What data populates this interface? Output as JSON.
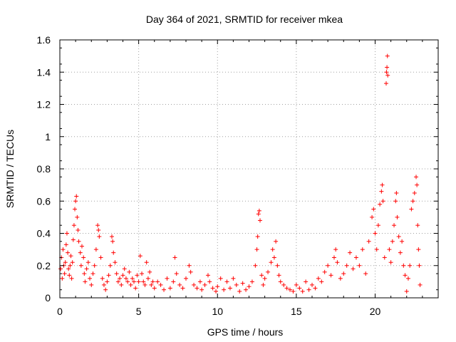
{
  "chart_data": {
    "type": "scatter",
    "title": "Day 364 of 2021, SRMTID for receiver mkea",
    "xlabel": "GPS time / hours",
    "ylabel": "SRMTID / TECUs",
    "xlim": [
      0,
      24
    ],
    "ylim": [
      0,
      1.6
    ],
    "x_ticks": [
      0,
      5,
      10,
      15,
      20
    ],
    "x_tick_labels": [
      "0",
      "5",
      "10",
      "15",
      "20"
    ],
    "y_ticks": [
      0,
      0.2,
      0.4,
      0.6,
      0.8,
      1.0,
      1.2,
      1.4,
      1.6
    ],
    "y_tick_labels": [
      "0",
      "0.2",
      "0.4",
      "0.6",
      "0.8",
      "1",
      "1.2",
      "1.4",
      "1.6"
    ],
    "grid": true,
    "marker": "+",
    "color": "#ff0000",
    "series": [
      {
        "name": "SRMTID",
        "points": [
          [
            0.05,
            0.18
          ],
          [
            0.1,
            0.25
          ],
          [
            0.15,
            0.12
          ],
          [
            0.2,
            0.3
          ],
          [
            0.25,
            0.2
          ],
          [
            0.3,
            0.15
          ],
          [
            0.35,
            0.22
          ],
          [
            0.4,
            0.33
          ],
          [
            0.45,
            0.4
          ],
          [
            0.5,
            0.28
          ],
          [
            0.55,
            0.18
          ],
          [
            0.6,
            0.14
          ],
          [
            0.65,
            0.2
          ],
          [
            0.7,
            0.26
          ],
          [
            0.75,
            0.12
          ],
          [
            0.8,
            0.22
          ],
          [
            0.85,
            0.36
          ],
          [
            0.9,
            0.45
          ],
          [
            0.95,
            0.55
          ],
          [
            1.0,
            0.6
          ],
          [
            1.05,
            0.63
          ],
          [
            1.1,
            0.5
          ],
          [
            1.15,
            0.42
          ],
          [
            1.2,
            0.35
          ],
          [
            1.3,
            0.28
          ],
          [
            1.35,
            0.2
          ],
          [
            1.4,
            0.32
          ],
          [
            1.5,
            0.25
          ],
          [
            1.55,
            0.15
          ],
          [
            1.6,
            0.1
          ],
          [
            1.7,
            0.18
          ],
          [
            1.8,
            0.22
          ],
          [
            1.9,
            0.12
          ],
          [
            2.0,
            0.08
          ],
          [
            2.1,
            0.15
          ],
          [
            2.2,
            0.2
          ],
          [
            2.3,
            0.3
          ],
          [
            2.4,
            0.45
          ],
          [
            2.45,
            0.42
          ],
          [
            2.5,
            0.38
          ],
          [
            2.6,
            0.25
          ],
          [
            2.7,
            0.12
          ],
          [
            2.8,
            0.08
          ],
          [
            2.9,
            0.05
          ],
          [
            3.0,
            0.1
          ],
          [
            3.1,
            0.14
          ],
          [
            3.2,
            0.2
          ],
          [
            3.3,
            0.38
          ],
          [
            3.35,
            0.35
          ],
          [
            3.4,
            0.28
          ],
          [
            3.5,
            0.22
          ],
          [
            3.6,
            0.15
          ],
          [
            3.7,
            0.1
          ],
          [
            3.8,
            0.12
          ],
          [
            3.9,
            0.08
          ],
          [
            4.0,
            0.14
          ],
          [
            4.1,
            0.18
          ],
          [
            4.2,
            0.12
          ],
          [
            4.3,
            0.1
          ],
          [
            4.4,
            0.16
          ],
          [
            4.5,
            0.08
          ],
          [
            4.6,
            0.12
          ],
          [
            4.7,
            0.1
          ],
          [
            4.8,
            0.06
          ],
          [
            4.9,
            0.14
          ],
          [
            5.0,
            0.1
          ],
          [
            5.1,
            0.26
          ],
          [
            5.2,
            0.15
          ],
          [
            5.3,
            0.1
          ],
          [
            5.4,
            0.08
          ],
          [
            5.5,
            0.22
          ],
          [
            5.6,
            0.12
          ],
          [
            5.7,
            0.16
          ],
          [
            5.8,
            0.08
          ],
          [
            5.9,
            0.1
          ],
          [
            6.0,
            0.06
          ],
          [
            6.2,
            0.1
          ],
          [
            6.4,
            0.08
          ],
          [
            6.6,
            0.05
          ],
          [
            6.8,
            0.12
          ],
          [
            7.0,
            0.06
          ],
          [
            7.2,
            0.1
          ],
          [
            7.3,
            0.25
          ],
          [
            7.4,
            0.15
          ],
          [
            7.6,
            0.08
          ],
          [
            7.8,
            0.06
          ],
          [
            8.0,
            0.12
          ],
          [
            8.2,
            0.2
          ],
          [
            8.3,
            0.16
          ],
          [
            8.5,
            0.08
          ],
          [
            8.7,
            0.06
          ],
          [
            8.9,
            0.1
          ],
          [
            9.0,
            0.05
          ],
          [
            9.2,
            0.08
          ],
          [
            9.4,
            0.14
          ],
          [
            9.5,
            0.1
          ],
          [
            9.7,
            0.06
          ],
          [
            9.9,
            0.04
          ],
          [
            10.0,
            0.07
          ],
          [
            10.2,
            0.12
          ],
          [
            10.4,
            0.05
          ],
          [
            10.6,
            0.1
          ],
          [
            10.8,
            0.06
          ],
          [
            11.0,
            0.12
          ],
          [
            11.2,
            0.08
          ],
          [
            11.4,
            0.04
          ],
          [
            11.6,
            0.09
          ],
          [
            11.8,
            0.05
          ],
          [
            12.0,
            0.07
          ],
          [
            12.2,
            0.1
          ],
          [
            12.4,
            0.2
          ],
          [
            12.5,
            0.3
          ],
          [
            12.55,
            0.38
          ],
          [
            12.6,
            0.52
          ],
          [
            12.65,
            0.54
          ],
          [
            12.7,
            0.48
          ],
          [
            12.8,
            0.14
          ],
          [
            12.9,
            0.08
          ],
          [
            13.0,
            0.12
          ],
          [
            13.2,
            0.16
          ],
          [
            13.4,
            0.22
          ],
          [
            13.5,
            0.3
          ],
          [
            13.6,
            0.25
          ],
          [
            13.7,
            0.35
          ],
          [
            13.8,
            0.2
          ],
          [
            13.9,
            0.14
          ],
          [
            14.0,
            0.1
          ],
          [
            14.2,
            0.08
          ],
          [
            14.4,
            0.06
          ],
          [
            14.6,
            0.05
          ],
          [
            14.8,
            0.04
          ],
          [
            15.0,
            0.08
          ],
          [
            15.2,
            0.06
          ],
          [
            15.4,
            0.04
          ],
          [
            15.6,
            0.1
          ],
          [
            15.8,
            0.05
          ],
          [
            16.0,
            0.08
          ],
          [
            16.2,
            0.06
          ],
          [
            16.4,
            0.12
          ],
          [
            16.6,
            0.1
          ],
          [
            16.8,
            0.16
          ],
          [
            17.0,
            0.2
          ],
          [
            17.2,
            0.14
          ],
          [
            17.4,
            0.25
          ],
          [
            17.5,
            0.3
          ],
          [
            17.6,
            0.22
          ],
          [
            17.8,
            0.12
          ],
          [
            18.0,
            0.15
          ],
          [
            18.2,
            0.2
          ],
          [
            18.4,
            0.28
          ],
          [
            18.6,
            0.18
          ],
          [
            18.8,
            0.25
          ],
          [
            19.0,
            0.2
          ],
          [
            19.2,
            0.3
          ],
          [
            19.4,
            0.15
          ],
          [
            19.6,
            0.35
          ],
          [
            19.8,
            0.5
          ],
          [
            19.9,
            0.55
          ],
          [
            20.0,
            0.4
          ],
          [
            20.1,
            0.3
          ],
          [
            20.2,
            0.45
          ],
          [
            20.3,
            0.58
          ],
          [
            20.4,
            0.66
          ],
          [
            20.45,
            0.7
          ],
          [
            20.5,
            0.6
          ],
          [
            20.6,
            0.25
          ],
          [
            20.7,
            1.33
          ],
          [
            20.72,
            1.4
          ],
          [
            20.75,
            1.43
          ],
          [
            20.78,
            1.5
          ],
          [
            20.8,
            1.38
          ],
          [
            20.9,
            0.3
          ],
          [
            21.0,
            0.22
          ],
          [
            21.1,
            0.35
          ],
          [
            21.2,
            0.45
          ],
          [
            21.3,
            0.6
          ],
          [
            21.35,
            0.65
          ],
          [
            21.4,
            0.5
          ],
          [
            21.5,
            0.38
          ],
          [
            21.6,
            0.28
          ],
          [
            21.7,
            0.35
          ],
          [
            21.8,
            0.2
          ],
          [
            21.9,
            0.14
          ],
          [
            22.0,
            0.04
          ],
          [
            22.1,
            0.12
          ],
          [
            22.2,
            0.2
          ],
          [
            22.3,
            0.55
          ],
          [
            22.4,
            0.6
          ],
          [
            22.5,
            0.65
          ],
          [
            22.6,
            0.75
          ],
          [
            22.65,
            0.7
          ],
          [
            22.7,
            0.45
          ],
          [
            22.75,
            0.3
          ],
          [
            22.8,
            0.2
          ],
          [
            22.85,
            0.08
          ]
        ]
      }
    ]
  }
}
